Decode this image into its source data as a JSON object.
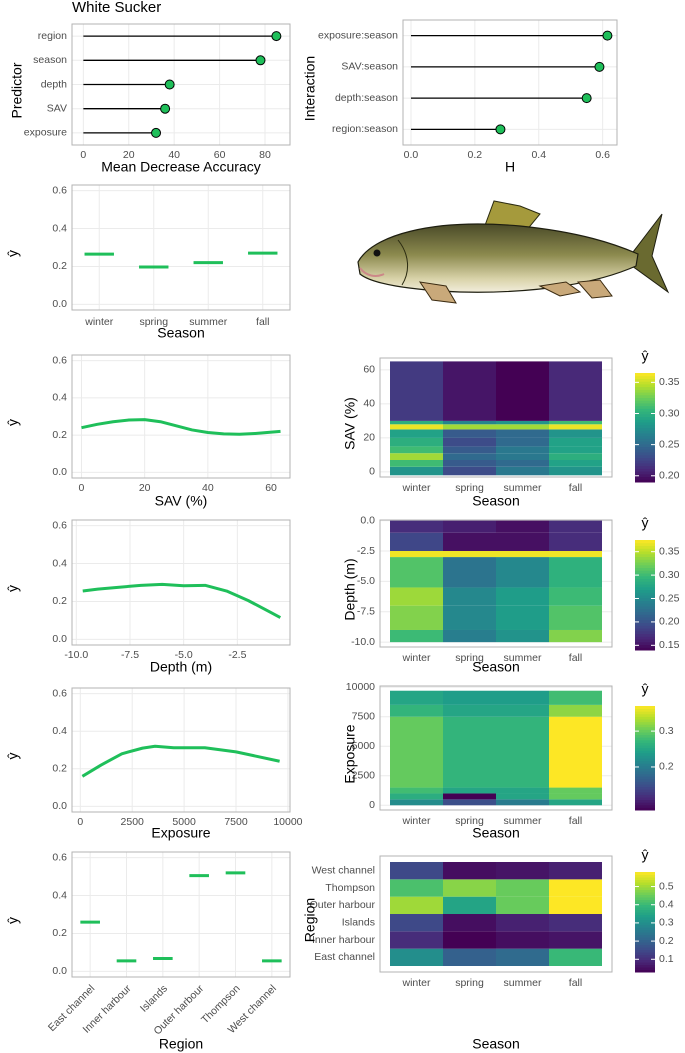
{
  "chart_data": [
    {
      "type": "lollipop",
      "title": "White Sucker",
      "categories": [
        "region",
        "season",
        "depth",
        "SAV",
        "exposure"
      ],
      "values": [
        85,
        78,
        38,
        36,
        32
      ],
      "xlim": [
        -5,
        91
      ],
      "xticks": [
        0,
        20,
        40,
        60,
        80
      ],
      "x_label": "Mean Decrease Accuracy",
      "y_label": "Predictor",
      "color": "#1fbf5a"
    },
    {
      "type": "lollipop",
      "categories": [
        "exposure:season",
        "SAV:season",
        "depth:season",
        "region:season"
      ],
      "values": [
        0.615,
        0.59,
        0.55,
        0.28
      ],
      "xlim": [
        -0.025,
        0.645
      ],
      "xticks": [
        {
          "value": 0,
          "label": "0.0"
        },
        0.2,
        0.4,
        0.6
      ],
      "x_label": "H",
      "y_label": "Interaction",
      "color": "#1fbf5a"
    },
    {
      "type": "segment",
      "categories": [
        "winter",
        "spring",
        "summer",
        "fall"
      ],
      "values": [
        0.265,
        0.197,
        0.22,
        0.27
      ],
      "ylim": [
        -0.03,
        0.63
      ],
      "yticks": [
        {
          "value": 0,
          "label": "0.0"
        },
        0.2,
        0.4,
        0.6
      ],
      "x_label": "Season",
      "y_label": "ŷ",
      "color": "#1fbf5a"
    },
    {
      "type": "line",
      "x": [
        0,
        5,
        10,
        15,
        20,
        25,
        30,
        35,
        40,
        45,
        50,
        55,
        63
      ],
      "values": [
        0.24,
        0.258,
        0.272,
        0.281,
        0.283,
        0.272,
        0.25,
        0.228,
        0.214,
        0.207,
        0.205,
        0.209,
        0.22
      ],
      "xlim": [
        -3,
        66
      ],
      "xticks": [
        0,
        20,
        40,
        60
      ],
      "ylim": [
        -0.03,
        0.63
      ],
      "yticks": [
        {
          "value": 0,
          "label": "0.0"
        },
        0.2,
        0.4,
        0.6
      ],
      "x_label": "SAV (%)",
      "y_label": "ŷ",
      "color": "#1fbf5a"
    },
    {
      "type": "heatmap",
      "categories": [
        "winter",
        "spring",
        "summer",
        "fall"
      ],
      "y_bins": [
        -2,
        3,
        7,
        11,
        15,
        20,
        25,
        28,
        30,
        65
      ],
      "ylim": [
        -3,
        67
      ],
      "yticks": [
        0,
        20,
        40,
        60
      ],
      "z": [
        [
          0.28,
          0.23,
          0.26,
          0.28
        ],
        [
          0.31,
          0.24,
          0.25,
          0.29
        ],
        [
          0.34,
          0.25,
          0.26,
          0.3
        ],
        [
          0.31,
          0.24,
          0.26,
          0.29
        ],
        [
          0.3,
          0.23,
          0.25,
          0.29
        ],
        [
          0.29,
          0.24,
          0.25,
          0.28
        ],
        [
          0.36,
          0.34,
          0.34,
          0.36
        ],
        [
          0.3,
          0.27,
          0.28,
          0.31
        ],
        [
          0.22,
          0.2,
          0.19,
          0.21
        ]
      ],
      "zlim": [
        0.19,
        0.365
      ],
      "zticks": [
        {
          "value": 0.2,
          "label": "0.20"
        },
        0.25,
        {
          "value": 0.3,
          "label": "0.30"
        },
        0.35
      ],
      "colorbar_title": "ŷ",
      "x_label": "Season",
      "y_label": "SAV (%)"
    },
    {
      "type": "line",
      "x": [
        -9.7,
        -9,
        -8,
        -7,
        -6,
        -5,
        -4,
        -3,
        -2,
        -1,
        -0.5
      ],
      "values": [
        0.255,
        0.265,
        0.275,
        0.285,
        0.29,
        0.283,
        0.285,
        0.255,
        0.205,
        0.145,
        0.115
      ],
      "xlim": [
        -10.2,
        -0.05
      ],
      "xticks": [
        {
          "value": -10,
          "label": "-10.0"
        },
        -7.5,
        {
          "value": -5,
          "label": "-5.0"
        },
        -2.5
      ],
      "ylim": [
        -0.03,
        0.63
      ],
      "yticks": [
        {
          "value": 0,
          "label": "0.0"
        },
        0.2,
        0.4,
        0.6
      ],
      "x_label": "Depth (m)",
      "y_label": "ŷ",
      "color": "#1fbf5a"
    },
    {
      "type": "heatmap",
      "categories": [
        "winter",
        "spring",
        "summer",
        "fall"
      ],
      "y_bins": [
        -10,
        -9,
        -7,
        -5.5,
        -3,
        -2.5,
        -1,
        0
      ],
      "ylim": [
        -10.4,
        0.05
      ],
      "yticks": [
        {
          "value": 0,
          "label": "0.0"
        },
        -2.5,
        {
          "value": -5,
          "label": "-5.0"
        },
        -7.5,
        {
          "value": -10,
          "label": "-10.0"
        }
      ],
      "z": [
        [
          0.3,
          0.24,
          0.26,
          0.33
        ],
        [
          0.33,
          0.25,
          0.27,
          0.31
        ],
        [
          0.34,
          0.25,
          0.27,
          0.3
        ],
        [
          0.31,
          0.23,
          0.25,
          0.29
        ],
        [
          0.37,
          0.37,
          0.37,
          0.37
        ],
        [
          0.19,
          0.15,
          0.15,
          0.17
        ],
        [
          0.17,
          0.16,
          0.15,
          0.17
        ]
      ],
      "zlim": [
        0.14,
        0.375
      ],
      "zticks": [
        0.15,
        {
          "value": 0.2,
          "label": "0.20"
        },
        0.25,
        {
          "value": 0.3,
          "label": "0.30"
        },
        0.35
      ],
      "colorbar_title": "ŷ",
      "x_label": "Season",
      "y_label": "Depth (m)"
    },
    {
      "type": "line",
      "x": [
        100,
        1000,
        2000,
        3000,
        3600,
        4500,
        6000,
        7500,
        9600
      ],
      "values": [
        0.16,
        0.22,
        0.28,
        0.31,
        0.32,
        0.312,
        0.312,
        0.29,
        0.24
      ],
      "xlim": [
        -400,
        10100
      ],
      "xticks": [
        0,
        2500,
        5000,
        7500,
        10000
      ],
      "ylim": [
        -0.03,
        0.63
      ],
      "yticks": [
        {
          "value": 0,
          "label": "0.0"
        },
        0.2,
        0.4,
        0.6
      ],
      "x_label": "Exposure",
      "y_label": "ŷ",
      "color": "#1fbf5a"
    },
    {
      "type": "heatmap",
      "categories": [
        "winter",
        "spring",
        "summer",
        "fall"
      ],
      "y_bins": [
        0,
        500,
        1000,
        1500,
        7500,
        8500,
        9700
      ],
      "ylim": [
        -400,
        10100
      ],
      "yticks": [
        0,
        2500,
        5000,
        7500,
        10000
      ],
      "z": [
        [
          0.22,
          0.15,
          0.2,
          0.25
        ],
        [
          0.26,
          0.08,
          0.25,
          0.3
        ],
        [
          0.28,
          0.25,
          0.25,
          0.3
        ],
        [
          0.3,
          0.27,
          0.27,
          0.37
        ],
        [
          0.27,
          0.25,
          0.25,
          0.32
        ],
        [
          0.25,
          0.24,
          0.24,
          0.28
        ]
      ],
      "zlim": [
        0.08,
        0.37
      ],
      "zticks": [
        0.2,
        0.3
      ],
      "colorbar_title": "ŷ",
      "x_label": "Season",
      "y_label": "Exposure"
    },
    {
      "type": "segment",
      "categories": [
        "East channel",
        "Inner harbour",
        "Islands",
        "Outer harbour",
        "Thompson",
        "West channel"
      ],
      "values": [
        0.26,
        0.055,
        0.068,
        0.505,
        0.52,
        0.055
      ],
      "ylim": [
        -0.03,
        0.63
      ],
      "yticks": [
        {
          "value": 0,
          "label": "0.0"
        },
        0.2,
        0.4,
        0.6
      ],
      "x_label": "Region",
      "y_label": "ŷ",
      "color": "#1fbf5a"
    },
    {
      "type": "heatmap",
      "categories": [
        "winter",
        "spring",
        "summer",
        "fall"
      ],
      "rows": [
        "East channel",
        "Inner harbour",
        "Islands",
        "Outer harbour",
        "Thompson",
        "West channel"
      ],
      "z": [
        [
          0.3,
          0.2,
          0.22,
          0.4
        ],
        [
          0.1,
          0.03,
          0.05,
          0.06
        ],
        [
          0.15,
          0.05,
          0.08,
          0.1
        ],
        [
          0.5,
          0.35,
          0.45,
          0.58
        ],
        [
          0.42,
          0.48,
          0.45,
          0.58
        ],
        [
          0.15,
          0.05,
          0.06,
          0.08
        ]
      ],
      "zlim": [
        0.03,
        0.58
      ],
      "zticks": [
        0.1,
        0.2,
        0.3,
        0.4,
        0.5
      ],
      "colorbar_title": "ŷ",
      "x_label": "Season",
      "y_label": "Region"
    }
  ]
}
